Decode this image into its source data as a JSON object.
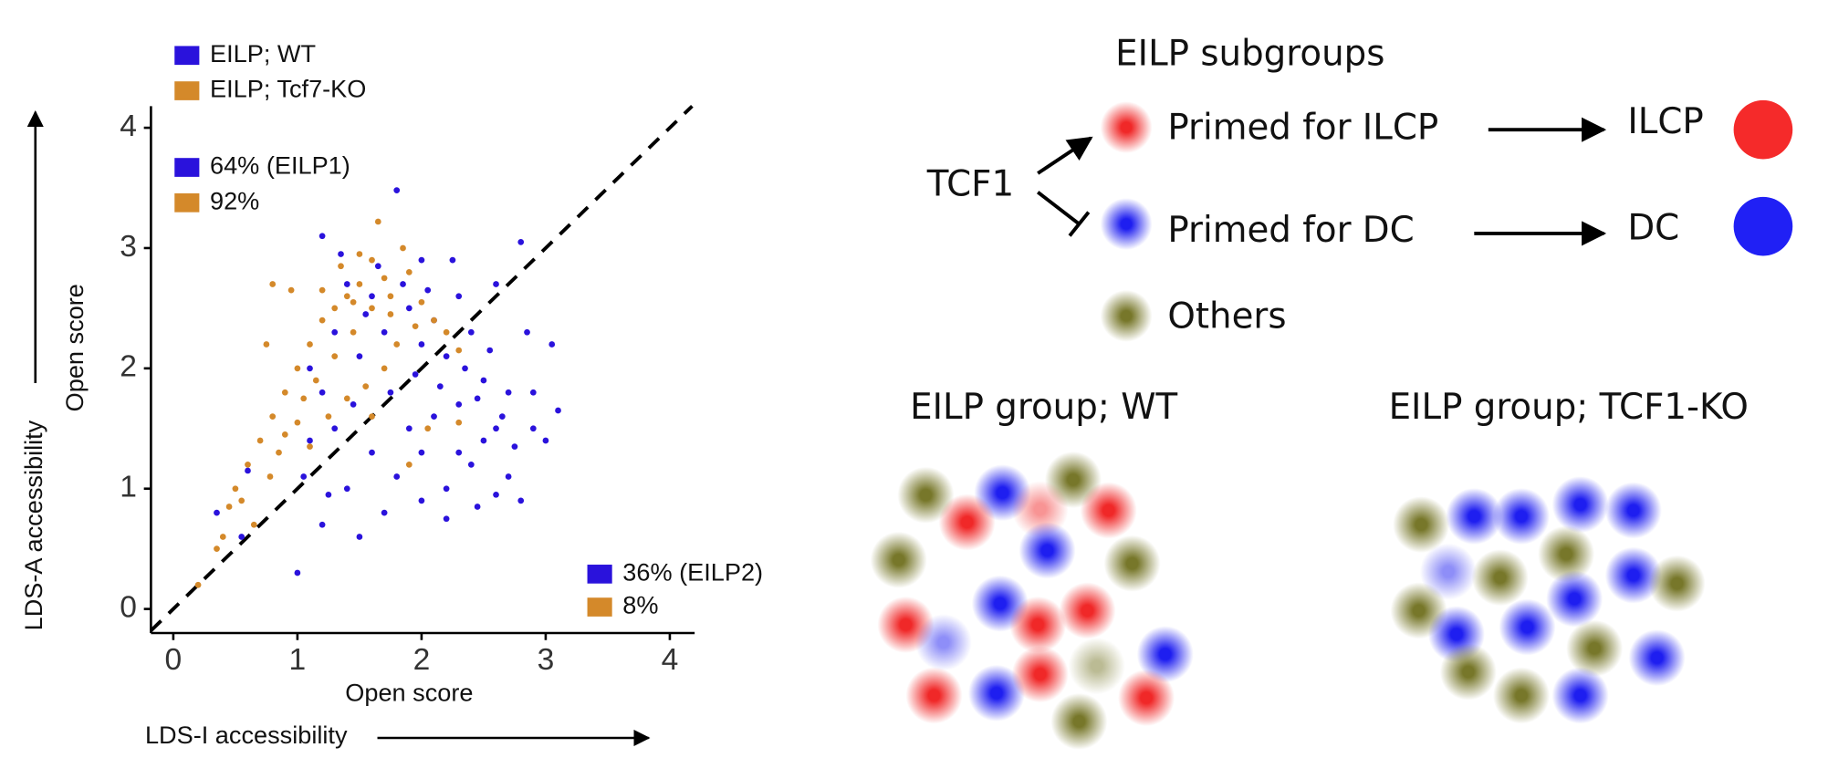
{
  "chart_data": {
    "type": "scatter",
    "x_label": "Open score",
    "y_label": "Open score",
    "x_outer_label": "LDS-I accessibility",
    "y_outer_label": "LDS-A accessibility",
    "xlim": [
      -0.18,
      4.2
    ],
    "ylim": [
      -0.2,
      4.18
    ],
    "xticks": [
      0,
      1,
      2,
      3,
      4
    ],
    "yticks": [
      0,
      1,
      2,
      3,
      4
    ],
    "series": [
      {
        "name": "EILP; WT",
        "color": "#2a12dc",
        "x": [
          1.8,
          2.0,
          1.2,
          2.6,
          2.8,
          2.3,
          2.1,
          1.9,
          1.6,
          1.4,
          1.3,
          1.1,
          1.2,
          1.5,
          1.7,
          2.0,
          2.2,
          2.4,
          2.5,
          2.7,
          2.6,
          2.9,
          3.0,
          3.1,
          3.05,
          2.85,
          2.4,
          2.2,
          2.0,
          1.8,
          1.6,
          1.7,
          1.9,
          2.1,
          2.3,
          2.5,
          2.7,
          2.8,
          2.45,
          2.3,
          1.4,
          1.5,
          1.2,
          1.0,
          1.05,
          1.3,
          1.45,
          1.75,
          1.95,
          2.15,
          2.35,
          2.55,
          2.65,
          1.85,
          1.65,
          2.25,
          1.35,
          2.05,
          1.55,
          2.45,
          0.6,
          0.55,
          0.35,
          2.0,
          2.2,
          2.6,
          1.1,
          1.25,
          2.75,
          2.9
        ],
        "values": [
          3.48,
          2.9,
          3.1,
          2.7,
          3.05,
          2.6,
          2.4,
          2.5,
          2.6,
          2.7,
          2.3,
          2.0,
          1.8,
          2.1,
          2.3,
          2.2,
          2.1,
          2.3,
          1.9,
          1.8,
          1.5,
          1.5,
          1.4,
          1.65,
          2.2,
          2.3,
          1.2,
          1.0,
          0.9,
          1.1,
          1.3,
          0.8,
          1.5,
          1.6,
          1.7,
          1.4,
          1.1,
          0.9,
          0.85,
          1.3,
          1.0,
          0.6,
          0.7,
          0.3,
          1.1,
          1.5,
          1.7,
          1.8,
          1.95,
          1.85,
          2.0,
          2.15,
          1.6,
          2.7,
          2.85,
          2.9,
          2.95,
          2.65,
          2.45,
          1.75,
          1.15,
          0.6,
          0.8,
          1.3,
          0.75,
          0.95,
          1.4,
          0.95,
          1.35,
          1.8
        ]
      },
      {
        "name": "EILP; Tcf7-KO",
        "color": "#d4892a",
        "x": [
          1.65,
          1.6,
          1.5,
          1.4,
          1.3,
          1.2,
          1.1,
          1.0,
          0.9,
          0.8,
          0.75,
          0.8,
          0.95,
          0.7,
          0.6,
          0.5,
          0.45,
          0.4,
          0.35,
          0.2,
          0.65,
          0.55,
          0.85,
          1.0,
          1.15,
          1.3,
          1.45,
          1.6,
          1.75,
          1.9,
          2.0,
          2.1,
          2.2,
          2.3,
          1.8,
          1.7,
          1.55,
          1.4,
          1.25,
          1.5,
          1.85,
          1.7,
          1.35,
          1.2,
          1.05,
          0.9,
          0.78,
          1.95,
          2.05,
          1.9,
          2.3,
          1.1,
          1.6,
          1.75,
          1.45
        ],
        "values": [
          3.22,
          2.9,
          2.7,
          2.6,
          2.5,
          2.4,
          2.2,
          2.0,
          1.8,
          1.6,
          2.2,
          2.7,
          2.65,
          1.4,
          1.2,
          1.0,
          0.85,
          0.6,
          0.5,
          0.2,
          0.7,
          0.9,
          1.3,
          1.55,
          1.9,
          2.1,
          2.3,
          2.5,
          2.6,
          2.8,
          2.55,
          2.4,
          2.3,
          2.15,
          2.2,
          2.0,
          1.85,
          1.75,
          1.6,
          2.95,
          3.0,
          2.75,
          2.85,
          2.65,
          1.75,
          1.45,
          1.1,
          2.35,
          1.5,
          1.2,
          1.55,
          1.35,
          1.6,
          2.45,
          2.55
        ]
      }
    ],
    "annotations": [
      {
        "text": "64%  (EILP1)",
        "color": "#2a12dc"
      },
      {
        "text": "92%",
        "color": "#d4892a"
      },
      {
        "text": "36% (EILP2)",
        "color": "#2a12dc"
      },
      {
        "text": "8%",
        "color": "#d4892a"
      }
    ]
  },
  "diagram": {
    "title": "EILP subgroups",
    "regulator": "TCF1",
    "subgroups": [
      "Primed for ILCP",
      "Primed for DC",
      "Others"
    ],
    "fates": [
      "ILCP",
      "DC"
    ],
    "groups": [
      "EILP group; WT",
      "EILP group; TCF1-KO"
    ]
  }
}
